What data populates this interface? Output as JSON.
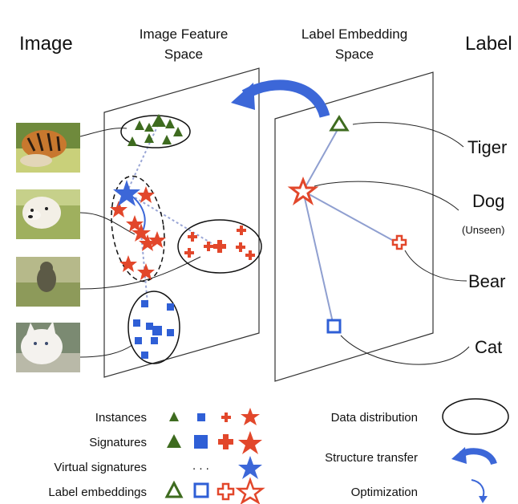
{
  "headers": {
    "image": "Image",
    "feature_space_line1": "Image Feature",
    "feature_space_line2": "Space",
    "embedding_space_line1": "Label Embedding",
    "embedding_space_line2": "Space",
    "label": "Label"
  },
  "labels": {
    "tiger": "Tiger",
    "dog": "Dog",
    "dog_note": "(Unseen)",
    "bear": "Bear",
    "cat": "Cat"
  },
  "legend": {
    "instances": "Instances",
    "signatures": "Signatures",
    "virtual_signatures": "Virtual signatures",
    "virtual_dots": ". . .",
    "label_embeddings": "Label embeddings",
    "data_distribution": "Data distribution",
    "structure_transfer": "Structure transfer",
    "optimization": "Optimization"
  },
  "photos": [
    {
      "name": "tiger-photo",
      "icon": "tiger-image"
    },
    {
      "name": "dog-photo",
      "icon": "dog-image"
    },
    {
      "name": "bear-photo",
      "icon": "bear-image"
    },
    {
      "name": "cat-photo",
      "icon": "cat-image"
    }
  ],
  "colors": {
    "tiger": "#3e6b1f",
    "dog": "#e2472b",
    "bear": "#e2472b",
    "cat": "#2f5fd6",
    "structure_arrow": "#3c67d8",
    "graph_edge": "#8f9fd0"
  }
}
